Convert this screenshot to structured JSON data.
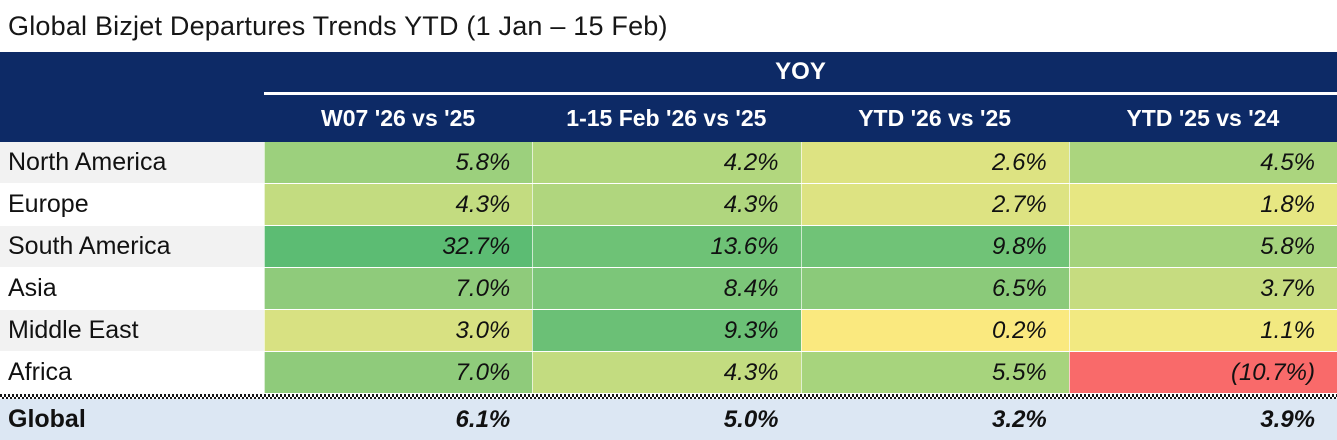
{
  "title": "Global Bizjet Departures Trends YTD (1 Jan – 15 Feb)",
  "table": {
    "group_header": "YOY",
    "columns": [
      "W07 '26 vs '25",
      "1-15 Feb '26 vs '25",
      "YTD '26 vs '25",
      "YTD '25 vs '24"
    ],
    "rows": [
      {
        "region": "North America",
        "values": [
          "5.8%",
          "4.2%",
          "2.6%",
          "4.5%"
        ],
        "colors": [
          "#9cd07d",
          "#b2d77e",
          "#dde382",
          "#abd57e"
        ]
      },
      {
        "region": "Europe",
        "values": [
          "4.3%",
          "4.3%",
          "2.7%",
          "1.8%"
        ],
        "colors": [
          "#c3dc80",
          "#b0d67e",
          "#dde382",
          "#e7e782"
        ]
      },
      {
        "region": "South America",
        "values": [
          "32.7%",
          "13.6%",
          "9.8%",
          "5.8%"
        ],
        "colors": [
          "#5cbc73",
          "#6ec276",
          "#70c377",
          "#a5d37d"
        ]
      },
      {
        "region": "Asia",
        "values": [
          "7.0%",
          "8.4%",
          "6.5%",
          "3.7%"
        ],
        "colors": [
          "#8fcb7b",
          "#7cc679",
          "#8bca7a",
          "#c6dc80"
        ]
      },
      {
        "region": "Middle East",
        "values": [
          "3.0%",
          "9.3%",
          "0.2%",
          "1.1%"
        ],
        "colors": [
          "#d8e182",
          "#6bc076",
          "#fae97f",
          "#f2e981"
        ]
      },
      {
        "region": "Africa",
        "values": [
          "7.0%",
          "4.3%",
          "5.5%",
          "(10.7%)"
        ],
        "colors": [
          "#8fcb7b",
          "#c3dc80",
          "#a7d47d",
          "#f96a6a"
        ]
      }
    ],
    "total_row": {
      "region": "Global",
      "values": [
        "6.1%",
        "5.0%",
        "3.2%",
        "3.9%"
      ]
    },
    "colors": {
      "header_bg": "#0d2a66",
      "header_text": "#ffffff",
      "total_bg": "#dce7f3",
      "label_alt_bg": "#f2f2f2",
      "negative_cell": "#f96a6a"
    }
  },
  "chart_data": {
    "type": "heatmap",
    "title": "Global Bizjet Departures Trends YTD (1 Jan – 15 Feb)",
    "group_header": "YOY",
    "columns": [
      "W07 '26 vs '25",
      "1-15 Feb '26 vs '25",
      "YTD '26 vs '25",
      "YTD '25 vs '24"
    ],
    "rows": [
      "North America",
      "Europe",
      "South America",
      "Asia",
      "Middle East",
      "Africa",
      "Global"
    ],
    "values_pct": [
      [
        5.8,
        4.2,
        2.6,
        4.5
      ],
      [
        4.3,
        4.3,
        2.7,
        1.8
      ],
      [
        32.7,
        13.6,
        9.8,
        5.8
      ],
      [
        7.0,
        8.4,
        6.5,
        3.7
      ],
      [
        3.0,
        9.3,
        0.2,
        1.1
      ],
      [
        7.0,
        4.3,
        5.5,
        -10.7
      ],
      [
        6.1,
        5.0,
        3.2,
        3.9
      ]
    ],
    "notes": "Negative values shown in parentheses; cells shaded red-yellow-green by value; Global row is totals on light-blue band"
  }
}
